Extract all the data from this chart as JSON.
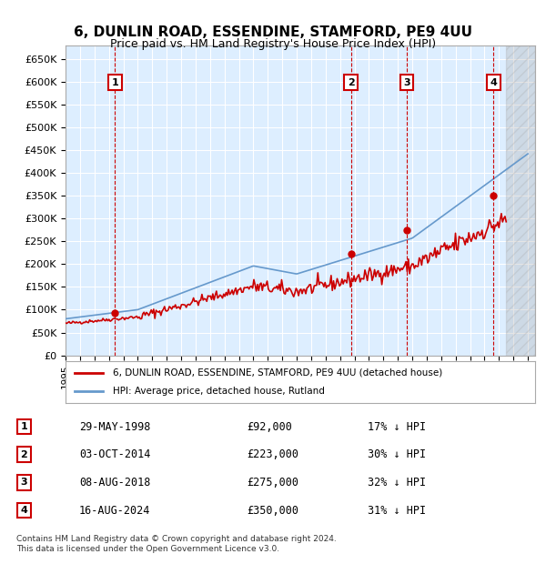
{
  "title": "6, DUNLIN ROAD, ESSENDINE, STAMFORD, PE9 4UU",
  "subtitle": "Price paid vs. HM Land Registry's House Price Index (HPI)",
  "ylim": [
    0,
    680000
  ],
  "yticks": [
    0,
    50000,
    100000,
    150000,
    200000,
    250000,
    300000,
    350000,
    400000,
    450000,
    500000,
    550000,
    600000,
    650000
  ],
  "ytick_labels": [
    "£0",
    "£50K",
    "£100K",
    "£150K",
    "£200K",
    "£250K",
    "£300K",
    "£350K",
    "£400K",
    "£450K",
    "£500K",
    "£550K",
    "£600K",
    "£650K"
  ],
  "xlim_start": 1995.0,
  "xlim_end": 2027.5,
  "hpi_color": "#6699cc",
  "price_color": "#cc0000",
  "sale_marker_color": "#cc0000",
  "dashed_line_color": "#cc0000",
  "grid_color": "#cccccc",
  "bg_color": "#ddeeff",
  "plot_bg_color": "#ddeeff",
  "legend_box_color": "#ffffff",
  "sale_points": [
    {
      "label": "1",
      "year": 1998.42,
      "price": 92000
    },
    {
      "label": "2",
      "year": 2014.75,
      "price": 223000
    },
    {
      "label": "3",
      "year": 2018.6,
      "price": 275000
    },
    {
      "label": "4",
      "year": 2024.62,
      "price": 350000
    }
  ],
  "sale_table": [
    {
      "num": "1",
      "date": "29-MAY-1998",
      "price": "£92,000",
      "note": "17% ↓ HPI"
    },
    {
      "num": "2",
      "date": "03-OCT-2014",
      "price": "£223,000",
      "note": "30% ↓ HPI"
    },
    {
      "num": "3",
      "date": "08-AUG-2018",
      "price": "£275,000",
      "note": "32% ↓ HPI"
    },
    {
      "num": "4",
      "date": "16-AUG-2024",
      "price": "£350,000",
      "note": "31% ↓ HPI"
    }
  ],
  "footer": "Contains HM Land Registry data © Crown copyright and database right 2024.\nThis data is licensed under the Open Government Licence v3.0.",
  "legend_line1": "6, DUNLIN ROAD, ESSENDINE, STAMFORD, PE9 4UU (detached house)",
  "legend_line2": "HPI: Average price, detached house, Rutland"
}
